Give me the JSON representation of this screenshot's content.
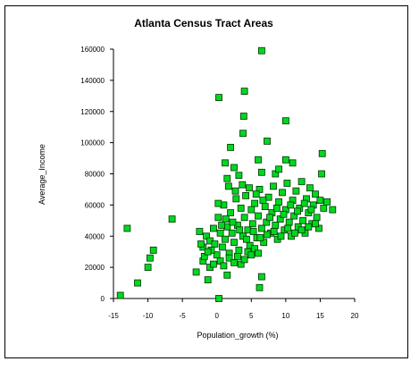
{
  "chart_data": {
    "type": "scatter",
    "title": "Atlanta  Census Tract Areas",
    "xlabel": "Population_growth (%)",
    "ylabel": "Average_Income",
    "xlim": [
      -15,
      20
    ],
    "ylim": [
      0,
      160000
    ],
    "xticks": [
      "-15",
      "-10",
      "-5",
      "0",
      "5",
      "10",
      "15",
      "20"
    ],
    "yticks": [
      "0",
      "20000",
      "40000",
      "60000",
      "80000",
      "100000",
      "120000",
      "140000",
      "160000"
    ],
    "grid": false,
    "legend": "none",
    "marker": {
      "shape": "square",
      "fill": "#00d820",
      "stroke": "#003300"
    },
    "points": [
      [
        -14.0,
        2000
      ],
      [
        -13.0,
        45000
      ],
      [
        -11.5,
        10000
      ],
      [
        -10.0,
        20000
      ],
      [
        -9.7,
        26000
      ],
      [
        -9.2,
        31000
      ],
      [
        -6.5,
        51000
      ],
      [
        0.3,
        0
      ],
      [
        0.3,
        129000
      ],
      [
        4.0,
        133000
      ],
      [
        3.9,
        117000
      ],
      [
        3.8,
        106000
      ],
      [
        6.5,
        159000
      ],
      [
        7.3,
        101000
      ],
      [
        10.0,
        114000
      ],
      [
        6.2,
        7000
      ],
      [
        6.5,
        14000
      ],
      [
        -3.0,
        17000
      ],
      [
        -2.0,
        24000
      ],
      [
        -1.3,
        12000
      ],
      [
        -1.0,
        20000
      ],
      [
        -0.5,
        22000
      ],
      [
        1.5,
        15000
      ],
      [
        1.2,
        87000
      ],
      [
        1.5,
        77000
      ],
      [
        2.0,
        97000
      ],
      [
        2.5,
        84000
      ],
      [
        3.2,
        79000
      ],
      [
        6.0,
        89000
      ],
      [
        6.5,
        81000
      ],
      [
        8.5,
        80000
      ],
      [
        9.0,
        83000
      ],
      [
        10.0,
        89000
      ],
      [
        11.0,
        87000
      ],
      [
        15.3,
        93000
      ],
      [
        15.2,
        80000
      ],
      [
        16.8,
        57000
      ],
      [
        16.0,
        62000
      ],
      [
        -2.5,
        43000
      ],
      [
        -2.0,
        33000
      ],
      [
        -1.5,
        40000
      ],
      [
        -1.0,
        37000
      ],
      [
        -0.5,
        45000
      ],
      [
        0.0,
        28000
      ],
      [
        0.2,
        52000
      ],
      [
        0.5,
        42000
      ],
      [
        0.8,
        33000
      ],
      [
        1.0,
        60000
      ],
      [
        1.2,
        38000
      ],
      [
        1.5,
        46000
      ],
      [
        1.8,
        29000
      ],
      [
        2.0,
        55000
      ],
      [
        2.2,
        42000
      ],
      [
        2.5,
        36000
      ],
      [
        2.8,
        64000
      ],
      [
        3.0,
        47000
      ],
      [
        3.2,
        31000
      ],
      [
        3.5,
        58000
      ],
      [
        3.8,
        40000
      ],
      [
        4.0,
        52000
      ],
      [
        4.2,
        66000
      ],
      [
        4.5,
        44000
      ],
      [
        4.8,
        34000
      ],
      [
        5.0,
        57000
      ],
      [
        5.2,
        48000
      ],
      [
        5.5,
        61000
      ],
      [
        5.8,
        39000
      ],
      [
        6.0,
        53000
      ],
      [
        6.2,
        70000
      ],
      [
        6.5,
        45000
      ],
      [
        6.8,
        36000
      ],
      [
        7.0,
        59000
      ],
      [
        7.2,
        49000
      ],
      [
        7.5,
        65000
      ],
      [
        7.8,
        42000
      ],
      [
        8.0,
        55000
      ],
      [
        8.2,
        72000
      ],
      [
        8.5,
        47000
      ],
      [
        8.8,
        38000
      ],
      [
        9.0,
        62000
      ],
      [
        9.2,
        51000
      ],
      [
        9.5,
        68000
      ],
      [
        9.8,
        44000
      ],
      [
        10.0,
        57000
      ],
      [
        10.2,
        74000
      ],
      [
        10.5,
        49000
      ],
      [
        10.8,
        40000
      ],
      [
        11.0,
        63000
      ],
      [
        11.2,
        53000
      ],
      [
        11.5,
        69000
      ],
      [
        11.8,
        46000
      ],
      [
        12.0,
        58000
      ],
      [
        12.3,
        75000
      ],
      [
        12.5,
        50000
      ],
      [
        12.8,
        42000
      ],
      [
        13.0,
        64000
      ],
      [
        13.3,
        55000
      ],
      [
        13.5,
        71000
      ],
      [
        13.8,
        48000
      ],
      [
        14.0,
        60000
      ],
      [
        14.3,
        67000
      ],
      [
        14.5,
        52000
      ],
      [
        14.8,
        45000
      ],
      [
        15.0,
        63000
      ],
      [
        15.5,
        58000
      ],
      [
        -1.8,
        27000
      ],
      [
        -0.8,
        31000
      ],
      [
        0.5,
        24000
      ],
      [
        1.0,
        21000
      ],
      [
        1.8,
        26000
      ],
      [
        2.5,
        23000
      ],
      [
        3.0,
        27000
      ],
      [
        3.5,
        22000
      ],
      [
        4.0,
        25000
      ],
      [
        4.5,
        30000
      ],
      [
        5.0,
        28000
      ],
      [
        5.5,
        32000
      ],
      [
        6.0,
        29000
      ],
      [
        0.7,
        47000
      ],
      [
        1.3,
        51000
      ],
      [
        2.3,
        49000
      ],
      [
        3.3,
        44000
      ],
      [
        4.3,
        38000
      ],
      [
        5.3,
        43000
      ],
      [
        6.3,
        39000
      ],
      [
        7.3,
        41000
      ],
      [
        8.3,
        43000
      ],
      [
        9.3,
        40000
      ],
      [
        10.3,
        45000
      ],
      [
        11.3,
        42000
      ],
      [
        12.3,
        44000
      ],
      [
        13.3,
        46000
      ],
      [
        14.3,
        48000
      ],
      [
        7.7,
        52000
      ],
      [
        8.7,
        58000
      ],
      [
        9.7,
        54000
      ],
      [
        10.7,
        60000
      ],
      [
        11.7,
        56000
      ],
      [
        12.7,
        61000
      ],
      [
        13.7,
        57000
      ],
      [
        5.7,
        67000
      ],
      [
        6.7,
        63000
      ],
      [
        4.7,
        71000
      ],
      [
        3.7,
        73000
      ],
      [
        2.7,
        69000
      ],
      [
        1.7,
        72000
      ],
      [
        0.2,
        61000
      ],
      [
        -0.3,
        35000
      ],
      [
        -1.3,
        30000
      ],
      [
        -2.3,
        35000
      ]
    ]
  }
}
